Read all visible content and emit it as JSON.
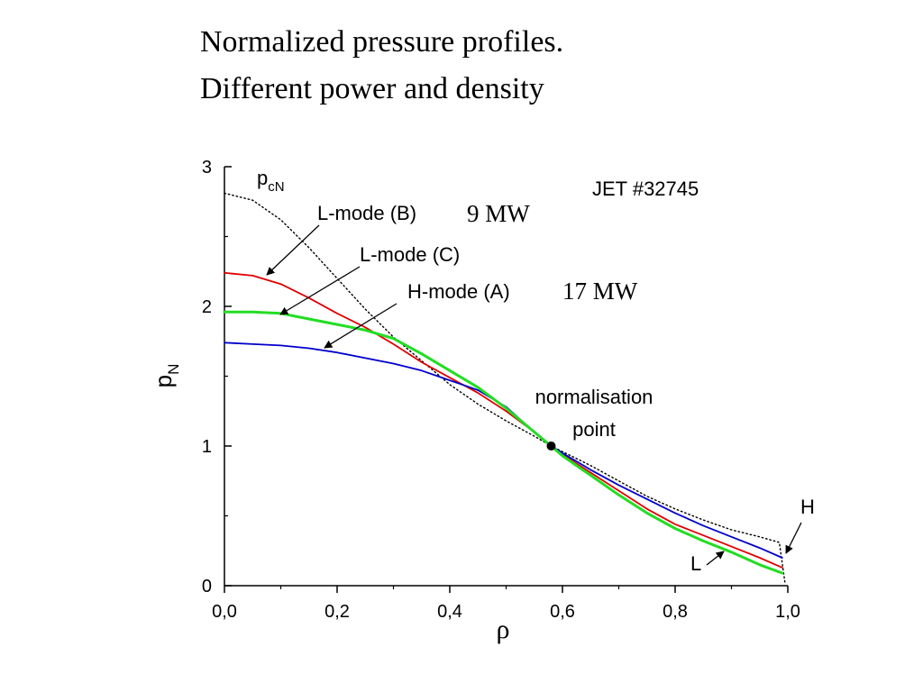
{
  "title": [
    "Normalized pressure profiles.",
    "Different power and density"
  ],
  "chart_data": {
    "type": "line",
    "xlabel": "ρ",
    "ylabel": "p",
    "ylabel_sub": "N",
    "xlim": [
      0.0,
      1.0
    ],
    "ylim": [
      0,
      3
    ],
    "xticks": [
      {
        "value": 0.0,
        "label": "0,0"
      },
      {
        "value": 0.2,
        "label": "0,2"
      },
      {
        "value": 0.4,
        "label": "0,4"
      },
      {
        "value": 0.6,
        "label": "0,6"
      },
      {
        "value": 0.8,
        "label": "0,8"
      },
      {
        "value": 1.0,
        "label": "1,0"
      }
    ],
    "yticks": [
      {
        "value": 0,
        "label": "0"
      },
      {
        "value": 1,
        "label": "1"
      },
      {
        "value": 2,
        "label": "2"
      },
      {
        "value": 3,
        "label": "3"
      }
    ],
    "y_minor_ticks": [
      0.5,
      1.5,
      2.5
    ],
    "x_minor_ticks": [
      0.1,
      0.3,
      0.5,
      0.7,
      0.9
    ],
    "grid": false,
    "series": [
      {
        "name": "pcN",
        "color": "#000000",
        "style": "dotted",
        "x": [
          0.0,
          0.05,
          0.1,
          0.15,
          0.2,
          0.25,
          0.3,
          0.35,
          0.4,
          0.45,
          0.5,
          0.55,
          0.58,
          0.6,
          0.65,
          0.7,
          0.75,
          0.8,
          0.85,
          0.9,
          0.95,
          0.985,
          0.995
        ],
        "y": [
          2.81,
          2.76,
          2.62,
          2.42,
          2.2,
          1.98,
          1.78,
          1.61,
          1.44,
          1.3,
          1.18,
          1.07,
          1.0,
          0.96,
          0.86,
          0.75,
          0.64,
          0.55,
          0.47,
          0.4,
          0.35,
          0.31,
          0.02
        ]
      },
      {
        "name": "L-mode (B)",
        "color": "#e00000",
        "style": "solid",
        "x": [
          0.0,
          0.05,
          0.1,
          0.15,
          0.2,
          0.25,
          0.3,
          0.35,
          0.4,
          0.45,
          0.5,
          0.55,
          0.58,
          0.6,
          0.65,
          0.7,
          0.75,
          0.8,
          0.85,
          0.9,
          0.95,
          0.99
        ],
        "y": [
          2.24,
          2.22,
          2.16,
          2.06,
          1.95,
          1.85,
          1.73,
          1.6,
          1.49,
          1.38,
          1.25,
          1.1,
          1.0,
          0.94,
          0.81,
          0.68,
          0.55,
          0.44,
          0.36,
          0.28,
          0.2,
          0.13
        ]
      },
      {
        "name": "L-mode (C)",
        "color": "#0000cc",
        "style": "solid",
        "x": [
          0.0,
          0.05,
          0.1,
          0.15,
          0.2,
          0.25,
          0.3,
          0.35,
          0.4,
          0.45,
          0.5,
          0.55,
          0.58,
          0.6,
          0.65,
          0.7,
          0.75,
          0.8,
          0.85,
          0.9,
          0.95,
          0.99
        ],
        "y": [
          1.74,
          1.73,
          1.72,
          1.7,
          1.67,
          1.63,
          1.59,
          1.54,
          1.47,
          1.4,
          1.28,
          1.1,
          1.0,
          0.95,
          0.83,
          0.72,
          0.62,
          0.52,
          0.43,
          0.35,
          0.27,
          0.2
        ]
      },
      {
        "name": "H-mode (A)",
        "color": "#22dd22",
        "style": "solid",
        "x": [
          0.0,
          0.05,
          0.1,
          0.15,
          0.2,
          0.25,
          0.3,
          0.35,
          0.4,
          0.45,
          0.5,
          0.55,
          0.58,
          0.6,
          0.65,
          0.7,
          0.75,
          0.8,
          0.85,
          0.9,
          0.95,
          0.99
        ],
        "y": [
          1.96,
          1.96,
          1.95,
          1.91,
          1.87,
          1.83,
          1.77,
          1.66,
          1.54,
          1.42,
          1.27,
          1.1,
          1.0,
          0.93,
          0.79,
          0.65,
          0.52,
          0.41,
          0.32,
          0.24,
          0.15,
          0.09
        ]
      }
    ],
    "marker": {
      "x": 0.58,
      "y": 1.0,
      "label": [
        "normalisation",
        "point"
      ]
    },
    "annotations": {
      "shot": "JET #32745",
      "pcn_main": "p",
      "pcn_sub": "cN",
      "lmode_b": "L-mode (B)",
      "lmode_c": "L-mode (C)",
      "hmode_a": "H-mode (A)",
      "power_low": "9 MW",
      "power_high": "17 MW",
      "edge_h": "H",
      "edge_l": "L"
    }
  }
}
